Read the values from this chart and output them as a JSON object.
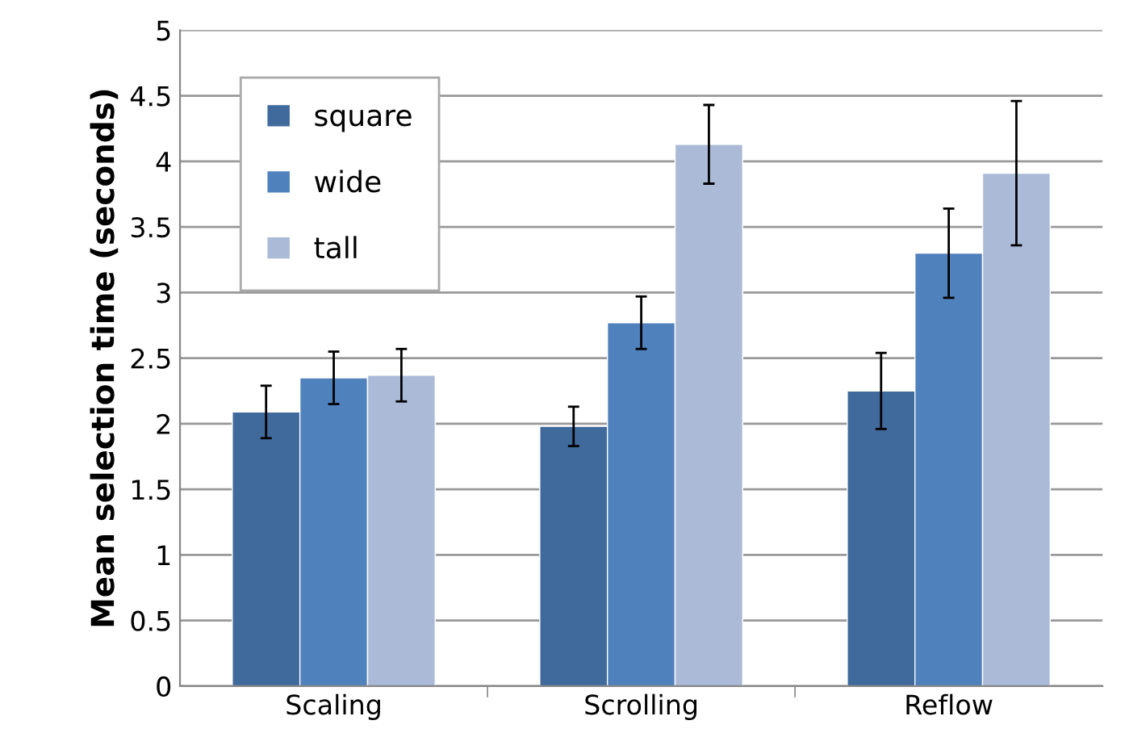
{
  "chart_data": {
    "type": "bar",
    "ylabel": "Mean selection time (seconds)",
    "categories": [
      "Scaling",
      "Scrolling",
      "Reflow"
    ],
    "series": [
      {
        "name": "square",
        "color": "#416a9c",
        "values": [
          2.09,
          1.98,
          2.25
        ],
        "errors": [
          0.2,
          0.15,
          0.29
        ]
      },
      {
        "name": "wide",
        "color": "#4f81bd",
        "values": [
          2.35,
          2.77,
          3.3
        ],
        "errors": [
          0.2,
          0.2,
          0.34
        ]
      },
      {
        "name": "tall",
        "color": "#aabad7",
        "values": [
          2.37,
          4.13,
          3.91
        ],
        "errors": [
          0.2,
          0.3,
          0.55
        ]
      }
    ],
    "ylim": [
      0,
      5
    ],
    "yticks": [
      0,
      0.5,
      1,
      1.5,
      2,
      2.5,
      3,
      3.5,
      4,
      4.5,
      5
    ],
    "grid": "y",
    "legend": "top left"
  }
}
